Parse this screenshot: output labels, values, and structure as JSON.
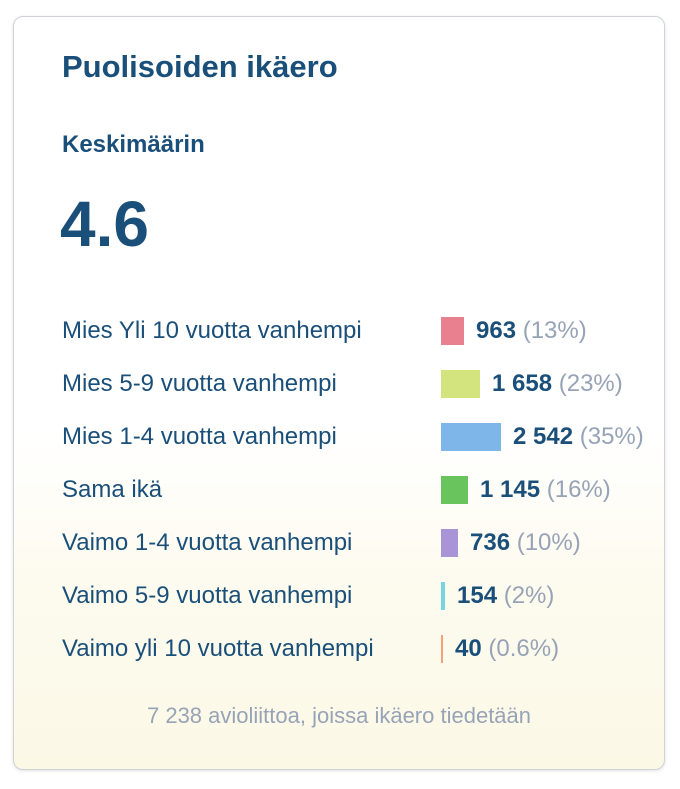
{
  "title": "Puolisoiden ikäero",
  "subtitle": "Keskimäärin",
  "average": "4.6",
  "footer": "7 238 avioliittoa, joissa ikäero tiedetään",
  "colors": [
    "#e9808f",
    "#d3e47f",
    "#7eb6ea",
    "#6ac45e",
    "#a894d6",
    "#73d6e0",
    "#f5a27b"
  ],
  "chart_data": {
    "type": "bar",
    "orientation": "horizontal",
    "categories": [
      "Mies Yli 10 vuotta vanhempi",
      "Mies 5-9 vuotta vanhempi",
      "Mies 1-4 vuotta vanhempi",
      "Sama ikä",
      "Vaimo 1-4 vuotta vanhempi",
      "Vaimo 5-9 vuotta vanhempi",
      "Vaimo yli 10 vuotta vanhempi"
    ],
    "values": [
      963,
      1658,
      2542,
      1145,
      736,
      154,
      40
    ],
    "value_labels": [
      "963",
      "1 658",
      "2 542",
      "1 145",
      "736",
      "154",
      "40"
    ],
    "percent_labels": [
      "(13%)",
      "(23%)",
      "(35%)",
      "(16%)",
      "(10%)",
      "(2%)",
      "(0.6%)"
    ],
    "grid": false
  }
}
